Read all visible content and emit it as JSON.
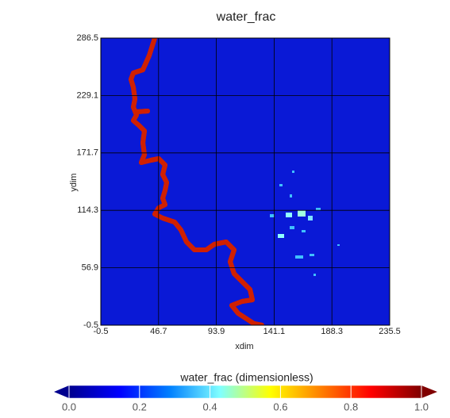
{
  "chart_data": {
    "type": "heatmap",
    "title": "water_frac",
    "x_label": "xdim",
    "y_label": "ydim",
    "xlim": [
      -0.5,
      235.5
    ],
    "xticks": [
      -0.5,
      46.7,
      93.9,
      141.1,
      188.3,
      235.5
    ],
    "ylim": [
      -0.5,
      286.5
    ],
    "yticks": [
      -0.5,
      56.9,
      114.3,
      171.7,
      229.1,
      286.5
    ],
    "grid": true,
    "colorbar": {
      "title": "water_frac (dimensionless)",
      "lim": [
        0,
        1
      ],
      "ticks": [
        {
          "value": 0,
          "label": "0.0"
        },
        0.2,
        0.4,
        0.6,
        0.8,
        {
          "value": 1,
          "label": "1.0"
        }
      ],
      "colors": [
        "#00008f",
        "#0000ff",
        "#0080ff",
        "#80ffff",
        "#ffff00",
        "#ff8000",
        "#ff0000",
        "#800000"
      ]
    }
  }
}
